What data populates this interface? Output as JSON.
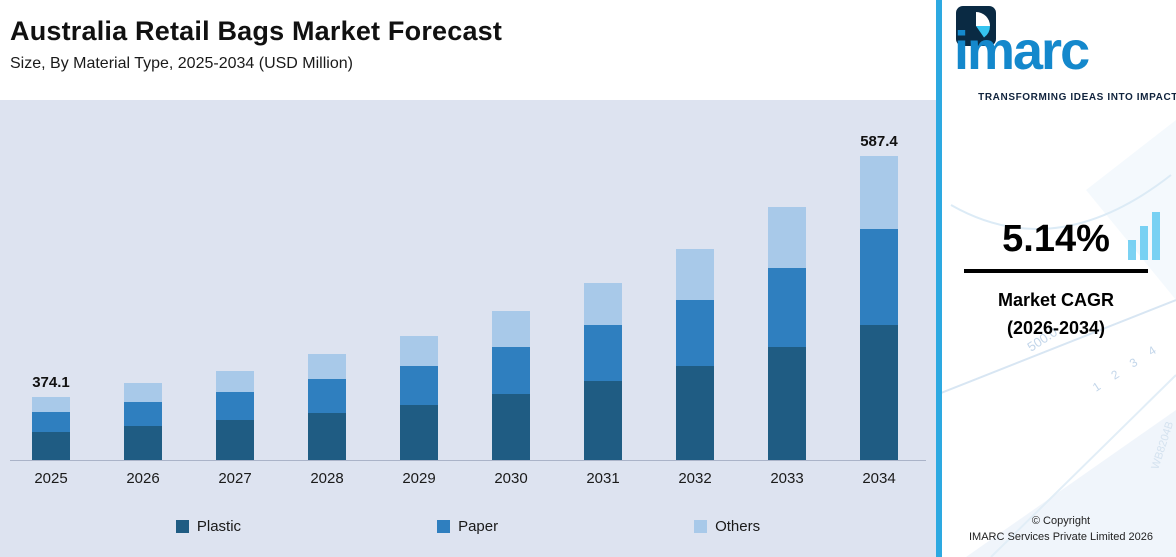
{
  "header": {
    "title": "Australia Retail Bags Market Forecast",
    "subtitle": "Size, By Material Type, 2025-2034 (USD Million)"
  },
  "chart_data": {
    "type": "bar",
    "stacked": true,
    "title": "Australia Retail Bags Market Forecast",
    "subtitle": "Size, By Material Type, 2025-2034 (USD Million)",
    "unit": "USD Million",
    "categories": [
      "2025",
      "2026",
      "2027",
      "2028",
      "2029",
      "2030",
      "2031",
      "2032",
      "2033",
      "2034"
    ],
    "series": [
      {
        "name": "Plastic",
        "color": "#1f5c83",
        "values": [
          166.5,
          172,
          177,
          183,
          190,
          200,
          211,
          225,
          241,
          261.4
        ]
      },
      {
        "name": "Paper",
        "color": "#2f7fbf",
        "values": [
          117.8,
          121,
          125,
          130,
          135,
          142,
          150,
          159,
          171,
          185.0
        ]
      },
      {
        "name": "Others",
        "color": "#a8c9e9",
        "values": [
          89.8,
          93,
          95,
          99,
          103,
          108,
          114,
          121,
          130,
          141.0
        ]
      }
    ],
    "totals": [
      374.1,
      386,
      397,
      412,
      428,
      450,
      475,
      505,
      542,
      587.4
    ],
    "value_labels": [
      "374.1",
      "",
      "",
      "",
      "",
      "",
      "",
      "",
      "",
      "587.4"
    ],
    "ylim": [
      318,
      600
    ],
    "xlabel": "",
    "ylabel": "",
    "grid": false,
    "legend_position": "bottom"
  },
  "sidebar": {
    "logo_text": "imarc",
    "tagline": "TRANSFORMING IDEAS INTO IMPACT",
    "cagr": {
      "value": "5.14%",
      "line1": "Market CAGR",
      "line2": "(2026-2034)"
    },
    "copyright": {
      "line1": "© Copyright",
      "line2": "IMARC Services Private Limited 2026"
    },
    "decor": [
      "500.0",
      "1 2 3 4",
      "WB8204B"
    ]
  },
  "colors": {
    "chart_background": "#dde3f0",
    "accent_stripe": "#2da9e1",
    "logo_blue": "#1488cc",
    "logo_navy": "#0a2a43"
  }
}
